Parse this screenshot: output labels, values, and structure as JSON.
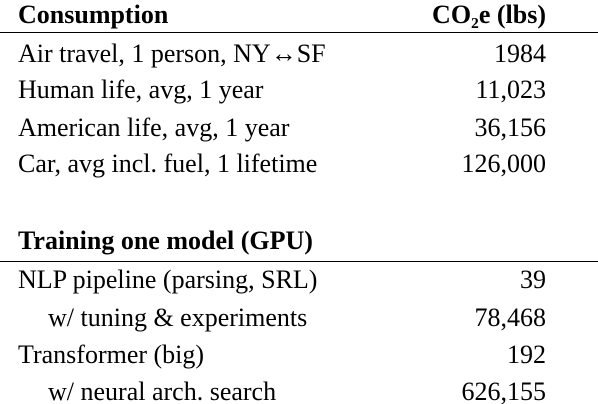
{
  "sections": [
    {
      "header": {
        "label": "Consumption",
        "value": "CO₂e (lbs)"
      },
      "rows": [
        [
          "Air travel, 1 person, NY↔SF",
          "1984"
        ],
        [
          "Human life, avg, 1 year",
          "11,023"
        ],
        [
          "American life, avg, 1 year",
          "36,156"
        ],
        [
          "Car, avg incl. fuel, 1 lifetime",
          "126,000"
        ]
      ]
    },
    {
      "header": {
        "label": "Training one model (GPU)"
      },
      "rows": [
        [
          "NLP pipeline (parsing, SRL)",
          "39"
        ],
        [
          "w/ tuning & experiments",
          "78,468"
        ],
        [
          "Transformer (big)",
          "192"
        ],
        [
          "w/ neural arch. search",
          "626,155"
        ]
      ]
    }
  ]
}
